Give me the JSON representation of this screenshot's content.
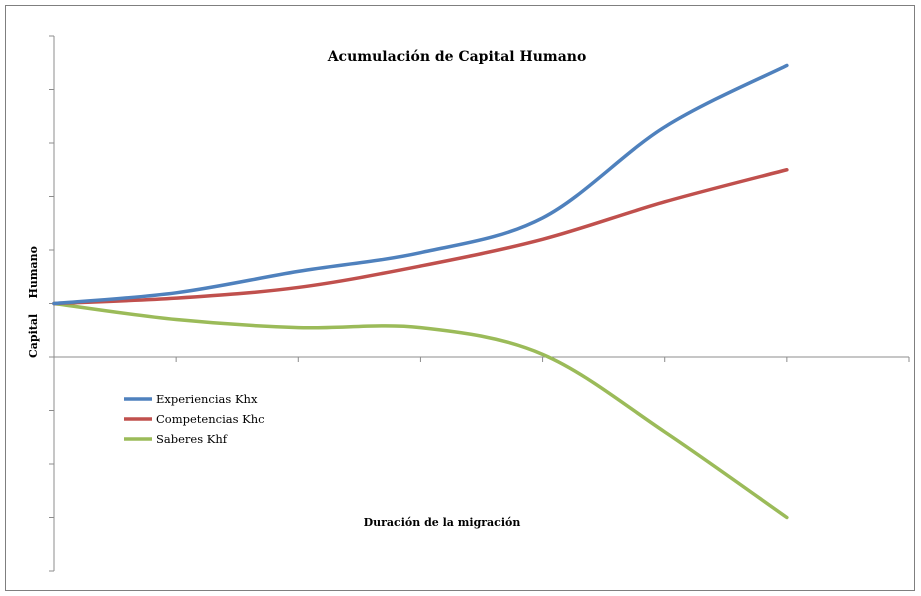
{
  "chart_data": {
    "type": "line",
    "title": "Acumulación de Capital Humano",
    "xlabel": "Duración de la migración",
    "ylabel": "Capital    Humano",
    "x": [
      0,
      1,
      2,
      3,
      4,
      5,
      6
    ],
    "xlim": [
      0,
      7
    ],
    "ylim": [
      -4,
      6
    ],
    "y_ticks": [
      -4,
      -3,
      -2,
      -1,
      0,
      1,
      2,
      3,
      4,
      5,
      6
    ],
    "x_ticks": [
      0,
      1,
      2,
      3,
      4,
      5,
      6,
      7
    ],
    "series": [
      {
        "name": "Experiencias Khx",
        "color": "#4f81bd",
        "values": [
          1.0,
          1.2,
          1.6,
          1.95,
          2.6,
          4.3,
          5.45
        ]
      },
      {
        "name": "Competencias Khc",
        "color": "#c0504d",
        "values": [
          1.0,
          1.1,
          1.3,
          1.7,
          2.2,
          2.9,
          3.5
        ]
      },
      {
        "name": "Saberes Khf",
        "color": "#9bbb59",
        "values": [
          1.0,
          0.7,
          0.55,
          0.55,
          0.05,
          -1.4,
          -3.0
        ]
      }
    ],
    "grid": false,
    "legend_position": "left, below x-axis"
  }
}
